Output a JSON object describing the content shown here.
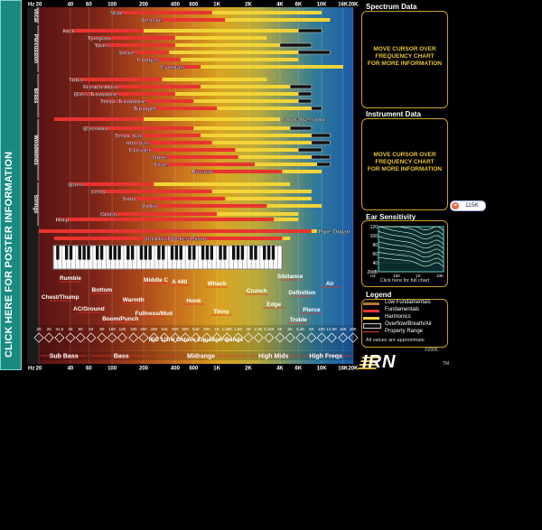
{
  "side_tab": {
    "label": "CLICK HERE FOR POSTER INFORMATION"
  },
  "chart_data": {
    "type": "bar",
    "scale": "log",
    "xlim": [
      20,
      20000
    ],
    "top_axis": {
      "unit": "Hz",
      "ticks": [
        "20",
        "40",
        "60",
        "100",
        "200",
        "400",
        "600",
        "1K",
        "2K",
        "4K",
        "6K",
        "10K",
        "16K",
        "20K"
      ],
      "tick_values": [
        20,
        40,
        60,
        100,
        200,
        400,
        600,
        1000,
        2000,
        4000,
        6000,
        10000,
        16000,
        20000
      ]
    },
    "bottom_axis": {
      "unit": "Hz",
      "ticks": [
        "20",
        "40",
        "60",
        "100",
        "200",
        "400",
        "600",
        "1K",
        "2K",
        "4K",
        "6K",
        "10K",
        "16K",
        "20K"
      ],
      "tick_values": [
        20,
        40,
        60,
        100,
        200,
        400,
        600,
        1000,
        2000,
        4000,
        6000,
        10000,
        16000,
        20000
      ]
    },
    "categories": [
      "Vocal",
      "Percussion",
      "Brass",
      "Woodwinds",
      "Strings"
    ],
    "instruments": [
      {
        "name": "Male",
        "cat": "Vocal",
        "fund": [
          100,
          900
        ],
        "harm": [
          900,
          10000
        ]
      },
      {
        "name": "Female",
        "cat": "Vocal",
        "fund": [
          200,
          1200
        ],
        "harm": [
          1200,
          12000
        ]
      },
      {
        "name": "Kick",
        "cat": "Percussion",
        "fund": [
          35,
          200
        ],
        "harm": [
          200,
          6000
        ],
        "ovr": [
          6000,
          10000
        ]
      },
      {
        "name": "Tympani",
        "cat": "Percussion",
        "fund": [
          60,
          400
        ],
        "harm": [
          400,
          3000
        ]
      },
      {
        "name": "Toms",
        "cat": "Percussion",
        "fund": [
          70,
          400
        ],
        "harm": [
          400,
          4000
        ],
        "ovr": [
          4000,
          8000
        ]
      },
      {
        "name": "Snare",
        "cat": "Percussion",
        "fund": [
          120,
          350
        ],
        "harm": [
          350,
          6000
        ],
        "ovr": [
          6000,
          12000
        ]
      },
      {
        "name": "Congas",
        "cat": "Percussion",
        "fund": [
          180,
          450
        ],
        "harm": [
          450,
          6000
        ]
      },
      {
        "name": "Cymbals",
        "cat": "Percussion",
        "fund": [
          300,
          700
        ],
        "harm": [
          700,
          16000
        ]
      },
      {
        "name": "Tuba",
        "cat": "Brass",
        "fund": [
          40,
          300
        ],
        "harm": [
          300,
          3000
        ]
      },
      {
        "name": "French Horn",
        "cat": "Brass",
        "fund": [
          55,
          700
        ],
        "harm": [
          700,
          5000
        ],
        "ovr": [
          5000,
          8000
        ]
      },
      {
        "name": "Bass Trombone",
        "cat": "Brass",
        "fund": [
          45,
          400
        ],
        "harm": [
          400,
          6000
        ],
        "ovr": [
          6000,
          8000
        ]
      },
      {
        "name": "Tenor Trombone",
        "cat": "Brass",
        "fund": [
          80,
          600
        ],
        "harm": [
          600,
          6000
        ],
        "ovr": [
          6000,
          8000
        ]
      },
      {
        "name": "Trumpet",
        "cat": "Brass",
        "fund": [
          165,
          1000
        ],
        "harm": [
          1000,
          8000
        ],
        "ovr": [
          8000,
          10000
        ]
      },
      {
        "name": "Contrabassoon",
        "cat": "Woodwinds",
        "fund": [
          28,
          200
        ],
        "harm": [
          200,
          4000
        ]
      },
      {
        "name": "Bassoon",
        "cat": "Woodwinds",
        "fund": [
          55,
          600
        ],
        "harm": [
          600,
          5000
        ],
        "ovr": [
          5000,
          8000
        ]
      },
      {
        "name": "Tenor Sax",
        "cat": "Woodwinds",
        "fund": [
          110,
          700
        ],
        "harm": [
          700,
          8000
        ],
        "ovr": [
          8000,
          12000
        ]
      },
      {
        "name": "Alto Sax",
        "cat": "Woodwinds",
        "fund": [
          140,
          900
        ],
        "harm": [
          900,
          8000
        ],
        "ovr": [
          8000,
          12000
        ]
      },
      {
        "name": "Clarinet",
        "cat": "Woodwinds",
        "fund": [
          150,
          1500
        ],
        "harm": [
          1500,
          6000
        ],
        "ovr": [
          6000,
          10000
        ]
      },
      {
        "name": "Oboe",
        "cat": "Woodwinds",
        "fund": [
          250,
          1600
        ],
        "harm": [
          1600,
          8000
        ],
        "ovr": [
          8000,
          12000
        ]
      },
      {
        "name": "Flute",
        "cat": "Woodwinds",
        "fund": [
          260,
          2300
        ],
        "harm": [
          2300,
          9000
        ],
        "ovr": [
          9000,
          12000
        ]
      },
      {
        "name": "Piccolo",
        "cat": "Woodwinds",
        "fund": [
          600,
          4200
        ],
        "harm": [
          4200,
          10000
        ]
      },
      {
        "name": "Bass",
        "cat": "Strings",
        "fund": [
          40,
          250
        ],
        "harm": [
          250,
          5000
        ]
      },
      {
        "name": "Cello",
        "cat": "Strings",
        "fund": [
          65,
          900
        ],
        "harm": [
          900,
          8000
        ]
      },
      {
        "name": "Viola",
        "cat": "Strings",
        "fund": [
          130,
          1200
        ],
        "harm": [
          1200,
          8000
        ]
      },
      {
        "name": "Violin",
        "cat": "Strings",
        "fund": [
          200,
          3000
        ],
        "harm": [
          3000,
          10000
        ]
      },
      {
        "name": "Guitar",
        "cat": "Strings",
        "fund": [
          80,
          1000
        ],
        "harm": [
          1000,
          6000
        ]
      },
      {
        "name": "Harp",
        "cat": "Strings",
        "fund": [
          30,
          3500
        ],
        "harm": [
          3500,
          6000
        ]
      },
      {
        "name": "Pipe Organ",
        "cat": "",
        "fund": [
          20,
          8000
        ],
        "harm": [
          8000,
          9000
        ]
      },
      {
        "name": "Standard 88-key Piano",
        "cat": "",
        "fund": [
          28,
          4200
        ],
        "harm": [
          4200,
          5000
        ]
      }
    ],
    "property_labels": [
      {
        "text": "Rumble",
        "x": 40
      },
      {
        "text": "Middle C",
        "x": 262
      },
      {
        "text": "A 440",
        "x": 440
      },
      {
        "text": "Sibilance",
        "x": 5000
      },
      {
        "text": "Bottom",
        "x": 80
      },
      {
        "text": "Whack",
        "x": 1000
      },
      {
        "text": "Air",
        "x": 12000
      },
      {
        "text": "Chest/Thump",
        "x": 32
      },
      {
        "text": "Warmth",
        "x": 160
      },
      {
        "text": "Crunch",
        "x": 2400
      },
      {
        "text": "Definition",
        "x": 6500
      },
      {
        "text": "AC/Ground",
        "x": 60
      },
      {
        "text": "Honk",
        "x": 600
      },
      {
        "text": "Edge",
        "x": 3500
      },
      {
        "text": "Fullness/Mud",
        "x": 250
      },
      {
        "text": "Tinny",
        "x": 1100
      },
      {
        "text": "Pierce",
        "x": 8000
      },
      {
        "text": "Boom/Punch",
        "x": 120
      },
      {
        "text": "Treble",
        "x": 6000
      }
    ],
    "eq_bands": [
      "20",
      "25",
      "31.5",
      "40",
      "50",
      "63",
      "80",
      "100",
      "125",
      "160",
      "200",
      "250",
      "315",
      "400",
      "500",
      "630",
      "800",
      "1K",
      "1.25K",
      "1.6K",
      "2K",
      "2.5K",
      "3.15K",
      "4K",
      "5K",
      "6.3K",
      "8K",
      "10K",
      "12.5K",
      "16K",
      "20K"
    ],
    "eq_title": "ISO 1/3rd Octave Equalizer Bands",
    "ranges": [
      {
        "name": "Sub Bass",
        "from": 20,
        "to": 60
      },
      {
        "name": "Bass",
        "from": 60,
        "to": 250
      },
      {
        "name": "Midrange",
        "from": 250,
        "to": 2000
      },
      {
        "name": "High Mids",
        "from": 2000,
        "to": 6000
      },
      {
        "name": "High Freqs",
        "from": 6000,
        "to": 20000
      }
    ],
    "colors": {
      "fund": "#e8342f",
      "harm": "#f2d438",
      "low_fund": "#b77a2a",
      "overflow": "#111111"
    }
  },
  "panels": {
    "spectrum": {
      "title": "Spectrum Data",
      "message": [
        "MOVE CURSOR OVER",
        "FREQUENCY CHART",
        "FOR MORE INFORMATION"
      ]
    },
    "instrument": {
      "title": "Instrument Data",
      "message": [
        "MOVE CURSOR OVER",
        "FREQUENCY CHART",
        "FOR MORE INFORMATION"
      ]
    },
    "ear": {
      "title": "Ear Sensitivity",
      "y_ticks": [
        "120",
        "100",
        "80",
        "60",
        "40",
        "20dB"
      ],
      "x_ticks": [
        "Hz",
        "100",
        "1K",
        "10K"
      ],
      "caption": "Click here for full chart"
    },
    "legend": {
      "title": "Legend",
      "items": [
        {
          "label": "Low Fundamentals",
          "color": "#b77a2a"
        },
        {
          "label": "Fundamentals",
          "color": "#e8342f"
        },
        {
          "label": "Harmonics",
          "color": "#f2d438"
        },
        {
          "label": "Overflow/Breath/Air",
          "color": "#111111"
        },
        {
          "label": "Property Range",
          "color": "#e8342f"
        }
      ],
      "note": "All values are approximate"
    }
  },
  "badge": {
    "icon": "share-icon",
    "count": "115K"
  },
  "logo": {
    "text": "IRN",
    "year": "©2006",
    "tm": "TM"
  }
}
